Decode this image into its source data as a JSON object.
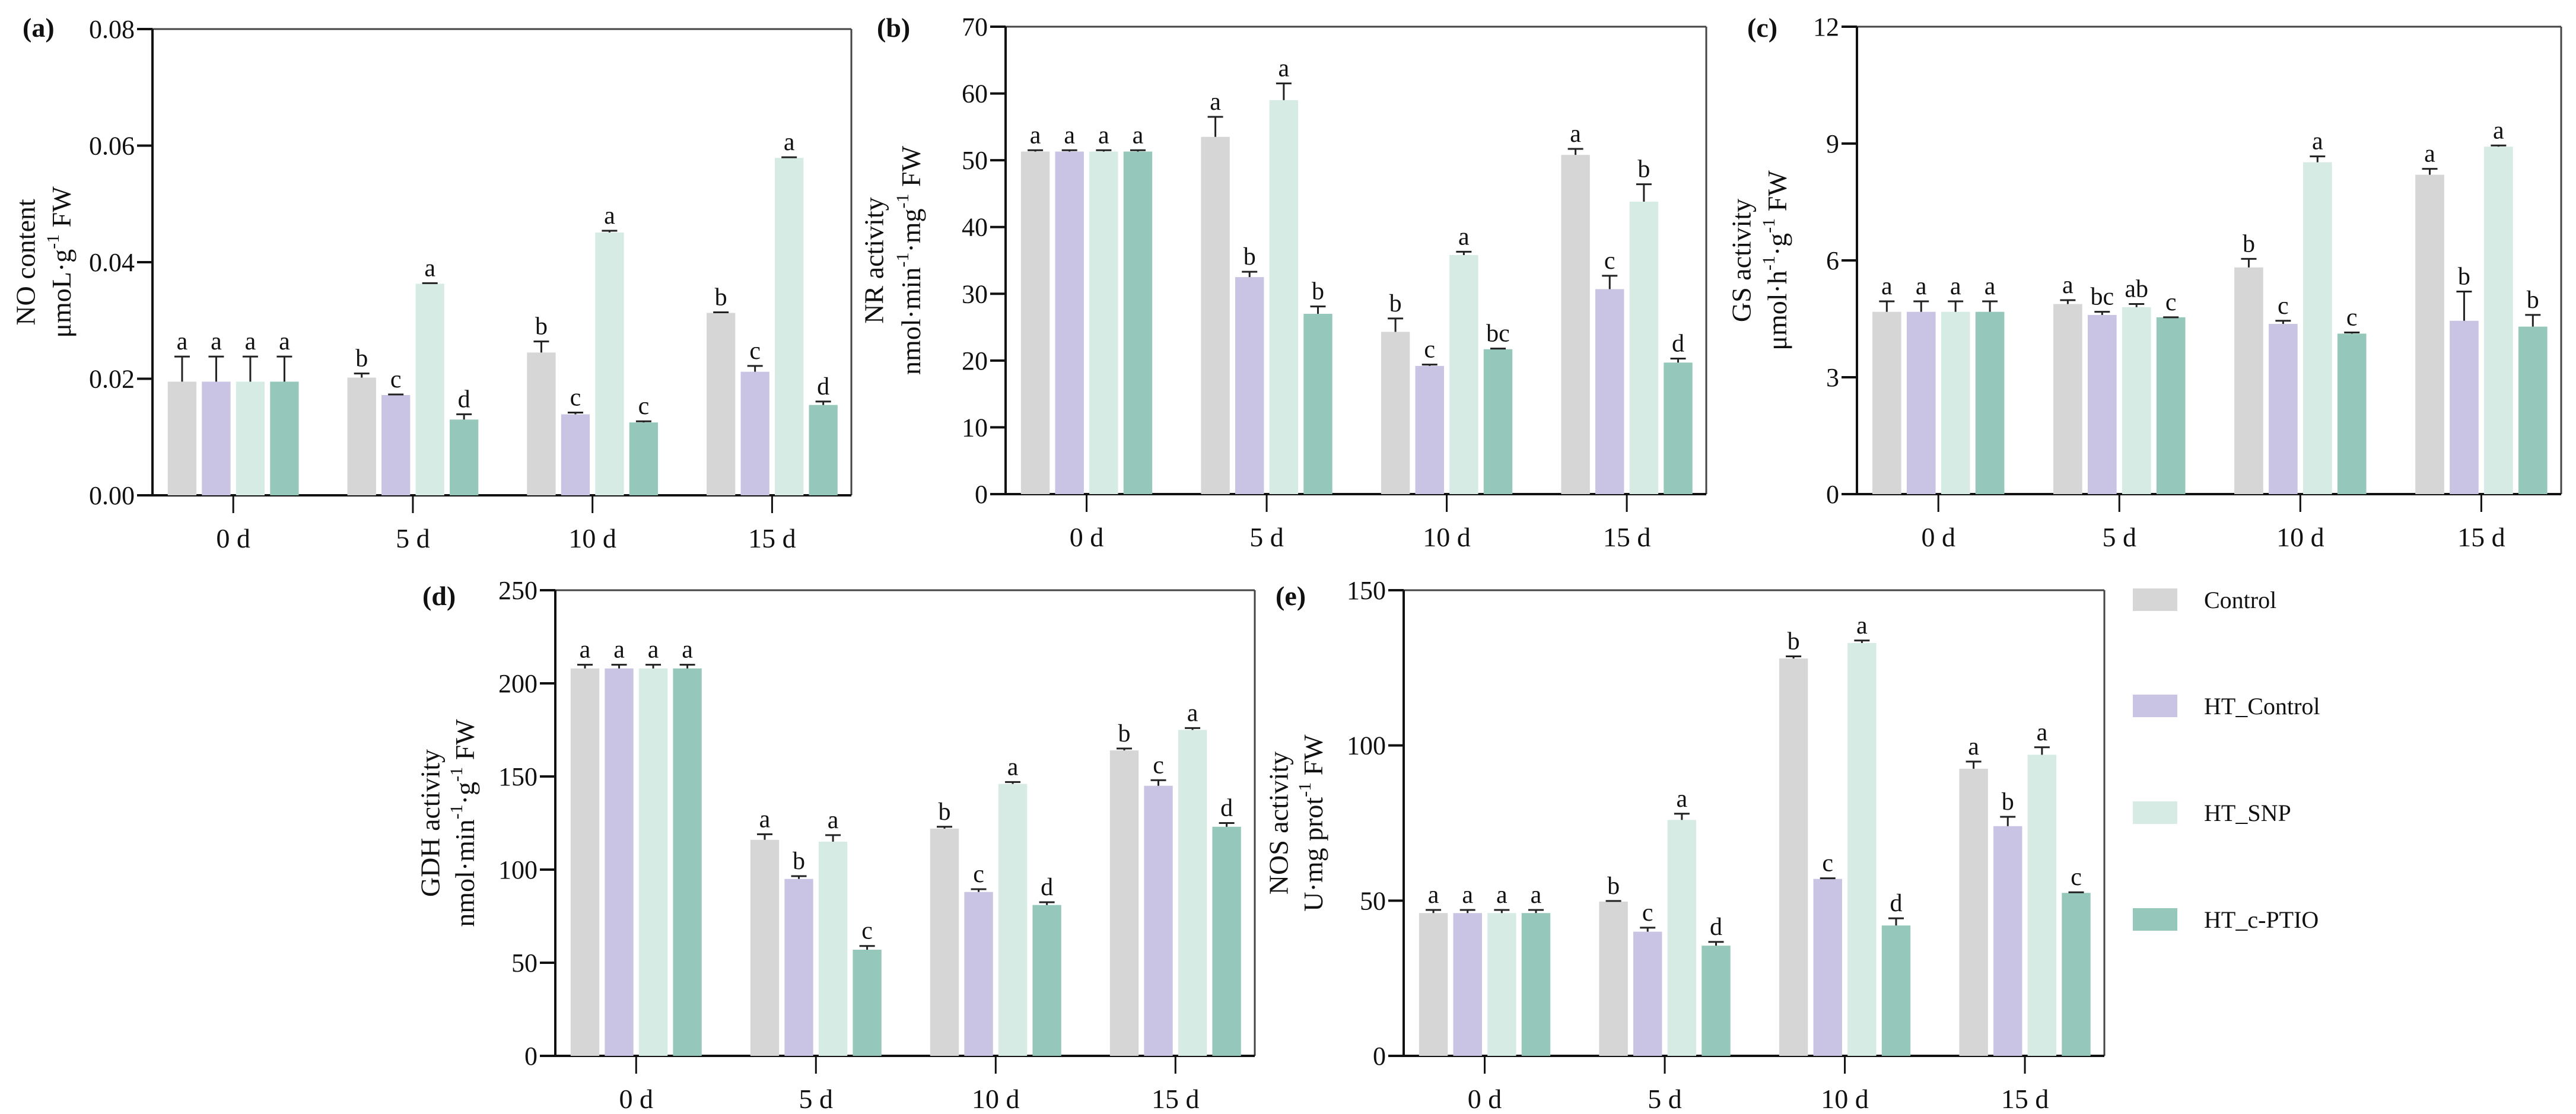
{
  "legend": [
    "Control",
    "HT_Control",
    "HT_SNP",
    "HT_c-PTIO"
  ],
  "colors": {
    "Control": "#d6d6d6",
    "HT_Control": "#c9c4e3",
    "HT_SNP": "#d6ebe4",
    "HT_c-PTIO": "#95c8ba",
    "axis": "#111111"
  },
  "chart_data": [
    {
      "type": "bar",
      "panel": "(a)",
      "title": "",
      "ylabel_line1": "NO content",
      "ylabel_line2": [
        {
          "t": "μmoL·g"
        },
        {
          "t": "-1",
          "sup": true
        },
        {
          "t": " FW"
        }
      ],
      "xlabel": "",
      "categories": [
        "0 d",
        "5 d",
        "10 d",
        "15 d"
      ],
      "ylim": [
        0,
        0.08
      ],
      "yticks": [
        "0.00",
        "0.02",
        "0.04",
        "0.06",
        "0.08"
      ],
      "ytick_values": [
        0,
        0.02,
        0.04,
        0.06,
        0.08
      ],
      "series": [
        {
          "name": "Control",
          "values": [
            0.0195,
            0.0202,
            0.0245,
            0.0313
          ],
          "errors": [
            0.0043,
            0.0007,
            0.0019,
            0.0001
          ],
          "letters": [
            "a",
            "b",
            "b",
            "b"
          ]
        },
        {
          "name": "HT_Control",
          "values": [
            0.0195,
            0.0172,
            0.0139,
            0.0212
          ],
          "errors": [
            0.0043,
            0.0001,
            0.0003,
            0.001
          ],
          "letters": [
            "a",
            "c",
            "c",
            "c"
          ]
        },
        {
          "name": "HT_SNP",
          "values": [
            0.0195,
            0.0363,
            0.0451,
            0.0579
          ],
          "errors": [
            0.0043,
            0.0001,
            0.0003,
            0.0001
          ],
          "letters": [
            "a",
            "a",
            "a",
            "a"
          ]
        },
        {
          "name": "HT_c-PTIO",
          "values": [
            0.0195,
            0.013,
            0.0125,
            0.0155
          ],
          "errors": [
            0.0043,
            0.0009,
            0.0002,
            0.0006
          ],
          "letters": [
            "a",
            "d",
            "c",
            "d"
          ]
        }
      ]
    },
    {
      "type": "bar",
      "panel": "(b)",
      "title": "",
      "ylabel_line1": "NR activity",
      "ylabel_line2": [
        {
          "t": "nmol·min"
        },
        {
          "t": "-1",
          "sup": true
        },
        {
          "t": "·mg"
        },
        {
          "t": "-1",
          "sup": true
        },
        {
          "t": " FW"
        }
      ],
      "xlabel": "",
      "categories": [
        "0 d",
        "5 d",
        "10 d",
        "15 d"
      ],
      "ylim": [
        0,
        70
      ],
      "yticks": [
        "0",
        "10",
        "20",
        "30",
        "40",
        "50",
        "60",
        "70"
      ],
      "ytick_values": [
        0,
        10,
        20,
        30,
        40,
        50,
        60,
        70
      ],
      "series": [
        {
          "name": "Control",
          "values": [
            51.3,
            53.5,
            24.3,
            50.8
          ],
          "errors": [
            0.2,
            3.0,
            2.0,
            0.9
          ],
          "letters": [
            "a",
            "a",
            "b",
            "a"
          ]
        },
        {
          "name": "HT_Control",
          "values": [
            51.3,
            32.5,
            19.2,
            30.7
          ],
          "errors": [
            0.2,
            0.8,
            0.2,
            2.0
          ],
          "letters": [
            "a",
            "b",
            "c",
            "c"
          ]
        },
        {
          "name": "HT_SNP",
          "values": [
            51.3,
            59.0,
            35.8,
            43.8
          ],
          "errors": [
            0.2,
            2.5,
            0.5,
            2.6
          ],
          "letters": [
            "a",
            "a",
            "a",
            "b"
          ]
        },
        {
          "name": "HT_c-PTIO",
          "values": [
            51.3,
            27.0,
            21.7,
            19.7
          ],
          "errors": [
            0.2,
            1.1,
            0.1,
            0.6
          ],
          "letters": [
            "a",
            "b",
            "bc",
            "d"
          ]
        }
      ]
    },
    {
      "type": "bar",
      "panel": "(c)",
      "title": "",
      "ylabel_line1": "GS activity",
      "ylabel_line2": [
        {
          "t": "μmol·h"
        },
        {
          "t": "-1",
          "sup": true
        },
        {
          "t": "·g"
        },
        {
          "t": "-1",
          "sup": true
        },
        {
          "t": " FW"
        }
      ],
      "xlabel": "",
      "categories": [
        "0 d",
        "5 d",
        "10 d",
        "15 d"
      ],
      "ylim": [
        0,
        12
      ],
      "yticks": [
        "0",
        "3",
        "6",
        "9",
        "12"
      ],
      "ytick_values": [
        0,
        3,
        6,
        9,
        12
      ],
      "series": [
        {
          "name": "Control",
          "values": [
            4.68,
            4.88,
            5.82,
            8.2
          ],
          "errors": [
            0.27,
            0.1,
            0.22,
            0.15
          ],
          "letters": [
            "a",
            "a",
            "b",
            "a"
          ]
        },
        {
          "name": "HT_Control",
          "values": [
            4.68,
            4.6,
            4.37,
            4.45
          ],
          "errors": [
            0.27,
            0.08,
            0.08,
            0.75
          ],
          "letters": [
            "a",
            "bc",
            "c",
            "b"
          ]
        },
        {
          "name": "HT_SNP",
          "values": [
            4.68,
            4.8,
            8.52,
            8.92
          ],
          "errors": [
            0.27,
            0.08,
            0.15,
            0.03
          ],
          "letters": [
            "a",
            "ab",
            "a",
            "a"
          ]
        },
        {
          "name": "HT_c-PTIO",
          "values": [
            4.68,
            4.54,
            4.12,
            4.3
          ],
          "errors": [
            0.27,
            0.0,
            0.03,
            0.3
          ],
          "letters": [
            "a",
            "c",
            "c",
            "b"
          ]
        }
      ]
    },
    {
      "type": "bar",
      "panel": "(d)",
      "title": "",
      "ylabel_line1": "GDH activity",
      "ylabel_line2": [
        {
          "t": "nmol·min"
        },
        {
          "t": "-1",
          "sup": true
        },
        {
          "t": "·g"
        },
        {
          "t": "-1",
          "sup": true
        },
        {
          "t": " FW"
        }
      ],
      "xlabel": "",
      "categories": [
        "0 d",
        "5 d",
        "10 d",
        "15 d"
      ],
      "ylim": [
        0,
        250
      ],
      "yticks": [
        "0",
        "50",
        "100",
        "150",
        "200",
        "250"
      ],
      "ytick_values": [
        0,
        50,
        100,
        150,
        200,
        250
      ],
      "series": [
        {
          "name": "Control",
          "values": [
            208,
            116,
            122,
            164
          ],
          "errors": [
            2,
            3,
            1,
            1
          ],
          "letters": [
            "a",
            "a",
            "b",
            "b"
          ]
        },
        {
          "name": "HT_Control",
          "values": [
            208,
            95,
            88,
            145
          ],
          "errors": [
            2,
            1.5,
            1.5,
            3
          ],
          "letters": [
            "a",
            "b",
            "c",
            "c"
          ]
        },
        {
          "name": "HT_SNP",
          "values": [
            208,
            115,
            146,
            175
          ],
          "errors": [
            2,
            3.5,
            1,
            1
          ],
          "letters": [
            "a",
            "a",
            "a",
            "a"
          ]
        },
        {
          "name": "HT_c-PTIO",
          "values": [
            208,
            57,
            81,
            123
          ],
          "errors": [
            2,
            2,
            1.5,
            2
          ],
          "letters": [
            "a",
            "c",
            "d",
            "d"
          ]
        }
      ]
    },
    {
      "type": "bar",
      "panel": "(e)",
      "title": "",
      "ylabel_line1": "NOS activity",
      "ylabel_line2": [
        {
          "t": "U·mg prot"
        },
        {
          "t": "-1",
          "sup": true
        },
        {
          "t": " FW"
        }
      ],
      "xlabel": "",
      "categories": [
        "0 d",
        "5 d",
        "10 d",
        "15 d"
      ],
      "ylim": [
        0,
        150
      ],
      "yticks": [
        "0",
        "50",
        "100",
        "150"
      ],
      "ytick_values": [
        0,
        50,
        100,
        150
      ],
      "series": [
        {
          "name": "Control",
          "values": [
            46,
            49.7,
            128,
            92.5
          ],
          "errors": [
            1,
            0.2,
            0.7,
            2.3
          ],
          "letters": [
            "a",
            "b",
            "b",
            "a"
          ]
        },
        {
          "name": "HT_Control",
          "values": [
            46,
            40,
            57,
            74
          ],
          "errors": [
            1,
            1.3,
            0.2,
            3
          ],
          "letters": [
            "a",
            "c",
            "c",
            "b"
          ]
        },
        {
          "name": "HT_SNP",
          "values": [
            46,
            76,
            133,
            97
          ],
          "errors": [
            1,
            2,
            0.8,
            2.4
          ],
          "letters": [
            "a",
            "a",
            "a",
            "a"
          ]
        },
        {
          "name": "HT_c-PTIO",
          "values": [
            46,
            35.5,
            42,
            52.5
          ],
          "errors": [
            1,
            1.2,
            2.3,
            0.2
          ],
          "letters": [
            "a",
            "d",
            "d",
            "c"
          ]
        }
      ]
    }
  ]
}
